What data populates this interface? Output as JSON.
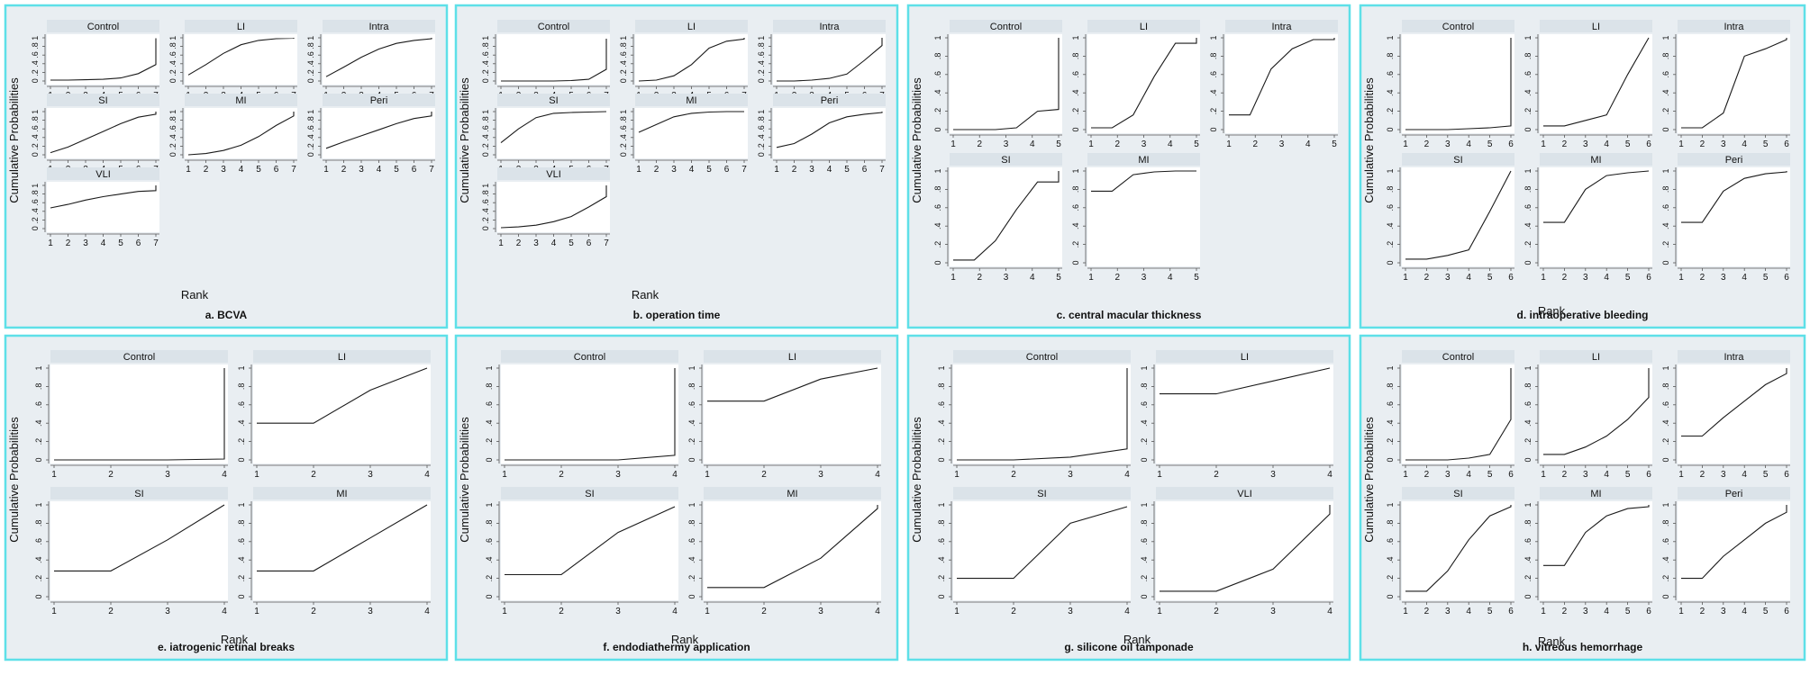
{
  "colors": {
    "frame": "#5ee0e8",
    "panel_bg": "#e9eef2",
    "plot_bg": "#ffffff",
    "strip_bg": "#dbe3e9",
    "line": "#1a1a1a",
    "text": "#111111"
  },
  "chart_data": [
    {
      "id": "a",
      "type": "line",
      "title": "a. BCVA",
      "xlabel": "Rank",
      "ylabel": "Cumulative Probabilities",
      "x_ticks": [
        1,
        2,
        3,
        4,
        5,
        6,
        7
      ],
      "y_ticks": [
        ".2",
        ".4",
        ".6",
        ".8",
        "1"
      ],
      "y_ticks_text": "0 .2 .4 .6 .8 1",
      "xlim": [
        1,
        7
      ],
      "ylim": [
        0,
        1
      ],
      "series": [
        {
          "name": "Control",
          "values": [
            0.02,
            0.02,
            0.03,
            0.04,
            0.07,
            0.17,
            0.38,
            0.99
          ]
        },
        {
          "name": "LI",
          "values": [
            0.14,
            0.38,
            0.64,
            0.84,
            0.94,
            0.98,
            0.99,
            1.0
          ]
        },
        {
          "name": "Intra",
          "values": [
            0.1,
            0.32,
            0.55,
            0.74,
            0.87,
            0.94,
            0.98,
            1.0
          ]
        },
        {
          "name": "SI",
          "values": [
            0.05,
            0.18,
            0.36,
            0.54,
            0.72,
            0.87,
            0.94,
            1.0
          ]
        },
        {
          "name": "MI",
          "values": [
            0.0,
            0.03,
            0.1,
            0.22,
            0.42,
            0.68,
            0.9,
            1.0
          ]
        },
        {
          "name": "Peri",
          "values": [
            0.15,
            0.3,
            0.44,
            0.58,
            0.72,
            0.84,
            0.9,
            1.0
          ]
        },
        {
          "name": "VLI",
          "values": [
            0.48,
            0.56,
            0.66,
            0.74,
            0.8,
            0.86,
            0.88,
            1.0
          ]
        }
      ]
    },
    {
      "id": "b",
      "type": "line",
      "title": "b. operation time",
      "xlabel": "Rank",
      "ylabel": "Cumulative Probabilities",
      "x_ticks": [
        1,
        2,
        3,
        4,
        5,
        6,
        7
      ],
      "y_ticks_text": "0 .2 .4 .6 .8 1",
      "xlim": [
        1,
        7
      ],
      "ylim": [
        0,
        1
      ],
      "series": [
        {
          "name": "Control",
          "values": [
            0.0,
            0.0,
            0.0,
            0.0,
            0.01,
            0.04,
            0.27,
            0.98
          ]
        },
        {
          "name": "LI",
          "values": [
            0.0,
            0.02,
            0.12,
            0.38,
            0.76,
            0.92,
            0.97,
            1.0
          ]
        },
        {
          "name": "Intra",
          "values": [
            0.0,
            0.0,
            0.02,
            0.06,
            0.16,
            0.48,
            0.82,
            1.0
          ]
        },
        {
          "name": "SI",
          "values": [
            0.28,
            0.6,
            0.86,
            0.96,
            0.98,
            0.99,
            1.0,
            1.0
          ]
        },
        {
          "name": "MI",
          "values": [
            0.52,
            0.7,
            0.88,
            0.96,
            0.99,
            1.0,
            1.0,
            1.0
          ]
        },
        {
          "name": "Peri",
          "values": [
            0.17,
            0.26,
            0.48,
            0.74,
            0.88,
            0.94,
            0.98,
            1.0
          ]
        },
        {
          "name": "VLI",
          "values": [
            0.02,
            0.04,
            0.08,
            0.16,
            0.28,
            0.5,
            0.74,
            1.0
          ]
        }
      ]
    },
    {
      "id": "c",
      "type": "line",
      "title": "c. central macular thickness",
      "xlabel": "",
      "ylabel": "Cumulative Probabilities",
      "x_ticks": [
        1,
        2,
        3,
        4,
        5
      ],
      "y_ticks": [
        "0",
        ".2",
        ".4",
        ".6",
        ".8",
        "1"
      ],
      "xlim": [
        1,
        5
      ],
      "ylim": [
        0,
        1
      ],
      "series": [
        {
          "name": "Control",
          "values": [
            0.0,
            0.0,
            0.0,
            0.02,
            0.2,
            0.22,
            1.0
          ]
        },
        {
          "name": "LI",
          "values": [
            0.02,
            0.02,
            0.16,
            0.58,
            0.94,
            0.94,
            1.0
          ]
        },
        {
          "name": "Intra",
          "values": [
            0.16,
            0.16,
            0.66,
            0.88,
            0.98,
            0.98,
            1.0
          ]
        },
        {
          "name": "SI",
          "values": [
            0.03,
            0.03,
            0.24,
            0.58,
            0.88,
            0.88,
            1.0
          ]
        },
        {
          "name": "MI",
          "values": [
            0.78,
            0.78,
            0.96,
            0.99,
            1.0,
            1.0,
            1.0
          ]
        }
      ]
    },
    {
      "id": "d",
      "type": "line",
      "title": "d. intraoperative bleeding",
      "xlabel": "Rank",
      "ylabel": "Cumulative Probabilities",
      "x_ticks": [
        1,
        2,
        3,
        4,
        5,
        6
      ],
      "y_ticks": [
        "0",
        ".2",
        ".4",
        ".6",
        ".8",
        "1"
      ],
      "xlim": [
        1,
        6
      ],
      "ylim": [
        0,
        1
      ],
      "series": [
        {
          "name": "Control",
          "values": [
            0.0,
            0.0,
            0.0,
            0.01,
            0.02,
            0.04,
            1.0
          ]
        },
        {
          "name": "LI",
          "values": [
            0.04,
            0.04,
            0.1,
            0.16,
            0.6,
            1.0,
            1.0
          ]
        },
        {
          "name": "Intra",
          "values": [
            0.02,
            0.02,
            0.18,
            0.8,
            0.88,
            0.98,
            1.0
          ]
        },
        {
          "name": "SI",
          "values": [
            0.04,
            0.04,
            0.08,
            0.14,
            0.56,
            1.0,
            1.0
          ]
        },
        {
          "name": "MI",
          "values": [
            0.44,
            0.44,
            0.8,
            0.95,
            0.98,
            1.0,
            1.0
          ]
        },
        {
          "name": "Peri",
          "values": [
            0.44,
            0.44,
            0.78,
            0.92,
            0.97,
            0.99,
            1.0
          ]
        }
      ]
    },
    {
      "id": "e",
      "type": "line",
      "title": "e. iatrogenic retinal breaks",
      "xlabel": "Rank",
      "ylabel": "Cumulative Probabilities",
      "x_ticks": [
        1,
        2,
        3,
        4
      ],
      "y_ticks": [
        "0",
        ".2",
        ".4",
        ".6",
        ".8",
        "1"
      ],
      "xlim": [
        1,
        4
      ],
      "ylim": [
        0,
        1
      ],
      "series": [
        {
          "name": "Control",
          "values": [
            0.0,
            0.0,
            0.0,
            0.01,
            1.0
          ]
        },
        {
          "name": "LI",
          "values": [
            0.4,
            0.4,
            0.76,
            1.0,
            1.0
          ]
        },
        {
          "name": "SI",
          "values": [
            0.28,
            0.28,
            0.62,
            1.0,
            1.0
          ]
        },
        {
          "name": "MI",
          "values": [
            0.28,
            0.28,
            0.64,
            1.0,
            1.0
          ]
        }
      ]
    },
    {
      "id": "f",
      "type": "line",
      "title": "f. endodiathermy application",
      "xlabel": "Rank",
      "ylabel": "Cumulative Probabilities",
      "x_ticks": [
        1,
        2,
        3,
        4
      ],
      "y_ticks": [
        "0",
        ".2",
        ".4",
        ".6",
        ".8",
        "1"
      ],
      "xlim": [
        1,
        4
      ],
      "ylim": [
        0,
        1
      ],
      "series": [
        {
          "name": "Control",
          "values": [
            0.0,
            0.0,
            0.0,
            0.05,
            1.0
          ]
        },
        {
          "name": "LI",
          "values": [
            0.64,
            0.64,
            0.88,
            1.0,
            1.0
          ]
        },
        {
          "name": "SI",
          "values": [
            0.24,
            0.24,
            0.7,
            0.98,
            0.98
          ]
        },
        {
          "name": "MI",
          "values": [
            0.1,
            0.1,
            0.42,
            0.96,
            1.0
          ]
        }
      ]
    },
    {
      "id": "g",
      "type": "line",
      "title": "g. silicone oil tamponade",
      "xlabel": "Rank",
      "ylabel": "Cumulative Probabilities",
      "x_ticks": [
        1,
        2,
        3,
        4
      ],
      "y_ticks": [
        "0",
        ".2",
        ".4",
        ".6",
        ".8",
        "1"
      ],
      "xlim": [
        1,
        4
      ],
      "ylim": [
        0,
        1
      ],
      "series": [
        {
          "name": "Control",
          "values": [
            0.0,
            0.0,
            0.03,
            0.12,
            1.0
          ]
        },
        {
          "name": "LI",
          "values": [
            0.72,
            0.72,
            0.86,
            1.0,
            1.0
          ]
        },
        {
          "name": "SI",
          "values": [
            0.2,
            0.2,
            0.8,
            0.98,
            0.98
          ]
        },
        {
          "name": "VLI",
          "values": [
            0.06,
            0.06,
            0.3,
            0.9,
            1.0
          ]
        }
      ]
    },
    {
      "id": "h",
      "type": "line",
      "title": "h. vitreous hemorrhage",
      "xlabel": "Rank",
      "ylabel": "Cumulative Probabilities",
      "x_ticks": [
        1,
        2,
        3,
        4,
        5,
        6
      ],
      "y_ticks": [
        "0",
        ".2",
        ".4",
        ".6",
        ".8",
        "1"
      ],
      "xlim": [
        1,
        6
      ],
      "ylim": [
        0,
        1
      ],
      "series": [
        {
          "name": "Control",
          "values": [
            0.0,
            0.0,
            0.0,
            0.02,
            0.06,
            0.44,
            1.0
          ]
        },
        {
          "name": "LI",
          "values": [
            0.06,
            0.06,
            0.14,
            0.26,
            0.44,
            0.68,
            1.0
          ]
        },
        {
          "name": "Intra",
          "values": [
            0.26,
            0.26,
            0.46,
            0.64,
            0.82,
            0.94,
            1.0
          ]
        },
        {
          "name": "SI",
          "values": [
            0.06,
            0.06,
            0.28,
            0.62,
            0.88,
            0.98,
            1.0
          ]
        },
        {
          "name": "MI",
          "values": [
            0.34,
            0.34,
            0.7,
            0.88,
            0.96,
            0.98,
            1.0
          ]
        },
        {
          "name": "Peri",
          "values": [
            0.2,
            0.2,
            0.44,
            0.62,
            0.8,
            0.92,
            1.0
          ]
        }
      ]
    }
  ]
}
